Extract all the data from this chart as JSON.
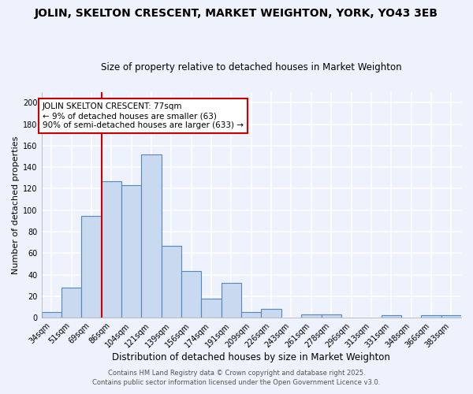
{
  "title": "JOLIN, SKELTON CRESCENT, MARKET WEIGHTON, YORK, YO43 3EB",
  "subtitle": "Size of property relative to detached houses in Market Weighton",
  "xlabel": "Distribution of detached houses by size in Market Weighton",
  "ylabel": "Number of detached properties",
  "bar_labels": [
    "34sqm",
    "51sqm",
    "69sqm",
    "86sqm",
    "104sqm",
    "121sqm",
    "139sqm",
    "156sqm",
    "174sqm",
    "191sqm",
    "209sqm",
    "226sqm",
    "243sqm",
    "261sqm",
    "278sqm",
    "296sqm",
    "313sqm",
    "331sqm",
    "348sqm",
    "366sqm",
    "383sqm"
  ],
  "bar_values": [
    5,
    28,
    95,
    127,
    123,
    152,
    67,
    43,
    18,
    32,
    5,
    8,
    0,
    3,
    3,
    0,
    0,
    2,
    0,
    2,
    2
  ],
  "bar_color": "#c8d9f0",
  "bar_edge_color": "#5588bb",
  "vline_color": "#cc0000",
  "vline_pos": 2.5,
  "annotation_title": "JOLIN SKELTON CRESCENT: 77sqm",
  "annotation_line1": "← 9% of detached houses are smaller (63)",
  "annotation_line2": "90% of semi-detached houses are larger (633) →",
  "annotation_box_color": "white",
  "annotation_box_edge": "#cc0000",
  "ylim": [
    0,
    210
  ],
  "yticks": [
    0,
    20,
    40,
    60,
    80,
    100,
    120,
    140,
    160,
    180,
    200
  ],
  "background_color": "#eef2fc",
  "grid_color": "white",
  "footer1": "Contains HM Land Registry data © Crown copyright and database right 2025.",
  "footer2": "Contains public sector information licensed under the Open Government Licence v3.0.",
  "title_fontsize": 10,
  "subtitle_fontsize": 8.5,
  "xlabel_fontsize": 8.5,
  "ylabel_fontsize": 8,
  "tick_fontsize": 7,
  "annot_fontsize": 7.5,
  "footer_fontsize": 6
}
